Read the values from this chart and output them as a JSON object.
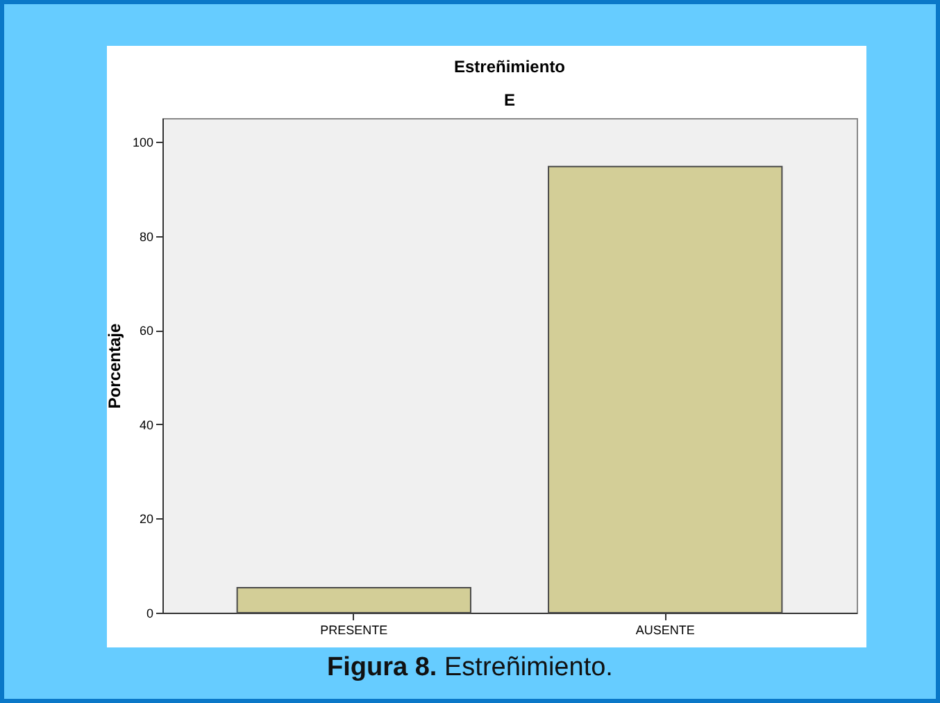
{
  "chart_data": {
    "type": "bar",
    "title": "Estreñimiento",
    "subtitle": "E",
    "ylabel": "Porcentaje",
    "categories": [
      "PRESENTE",
      "AUSENTE"
    ],
    "values": [
      5.3,
      94.7
    ],
    "color": "#d3ce97",
    "ylim": [
      0,
      105
    ],
    "yticks": [
      0,
      20,
      40,
      60,
      80,
      100
    ],
    "grid": false,
    "annotations": [
      "Figura 8. Estreñimiento."
    ]
  }
}
